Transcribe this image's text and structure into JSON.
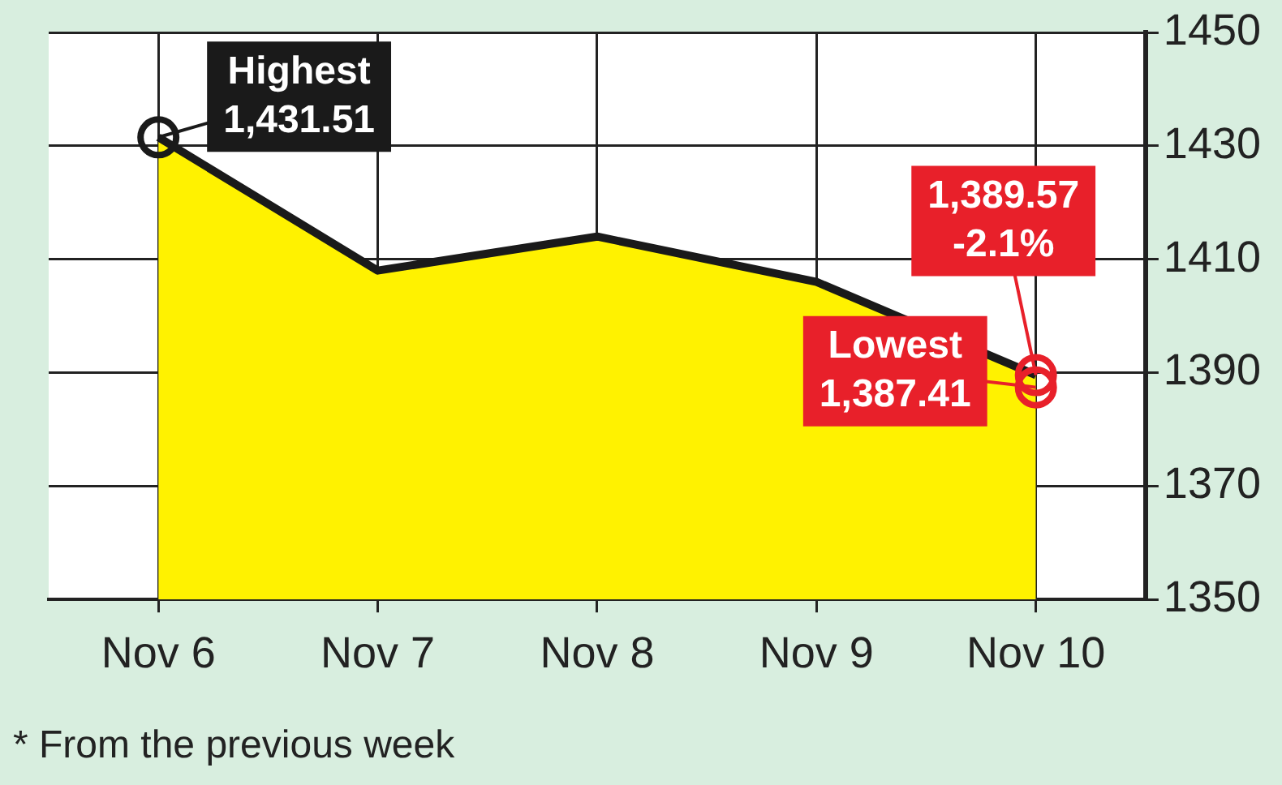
{
  "chart_data": {
    "type": "area",
    "categories": [
      "Nov 6",
      "Nov 7",
      "Nov 8",
      "Nov 9",
      "Nov 10"
    ],
    "series": [
      {
        "color": "#1a1a1a",
        "values": [
          1431.51,
          1408,
          1414,
          1406,
          1389.57
        ]
      }
    ],
    "ylim": [
      1350,
      1450
    ],
    "yticks": [
      1350,
      1370,
      1390,
      1410,
      1430,
      1450
    ],
    "grid": true,
    "legend": false,
    "marker": "none",
    "line_style": "solid",
    "annotations": [
      {
        "text": "Highest\n1,431.51",
        "x": "Nov 6",
        "y": 1431.51
      },
      {
        "text": "1,389.57\n-2.1%",
        "x": "Nov 10",
        "y": 1389.57
      },
      {
        "text": "Lowest\n1,387.41",
        "x": "Nov 10",
        "y": 1387.41
      },
      "* From the previous week"
    ]
  }
}
